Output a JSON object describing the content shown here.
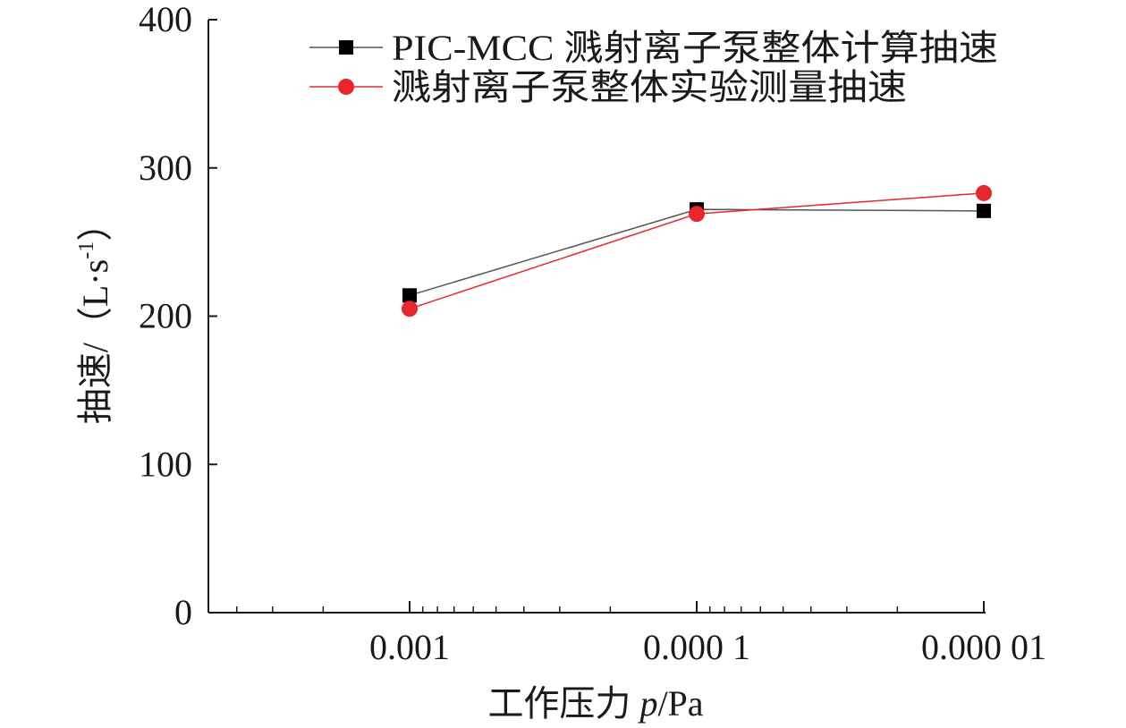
{
  "chart_data": {
    "type": "line",
    "x": [
      "0.001",
      "0.000 1",
      "0.000 01"
    ],
    "x_values": [
      0.001,
      0.0001,
      1e-05
    ],
    "x_scale": "log",
    "x_reversed": true,
    "ylim": [
      0,
      400
    ],
    "yticks": [
      "0",
      "100",
      "200",
      "300",
      "400"
    ],
    "ytick_values": [
      0,
      100,
      200,
      300,
      400
    ],
    "xlabel_prefix": "工作压力 ",
    "xlabel_var": "p",
    "xlabel_unit": "/Pa",
    "ylabel_main": "抽速/（L·s",
    "ylabel_sup": "-1",
    "ylabel_tail": "）",
    "grid": false,
    "legend_position": "top-right",
    "series": [
      {
        "name": "PIC-MCC 溅射离子泵整体计算抽速",
        "marker": "square",
        "color": "#000000",
        "line_color": "#555555",
        "values": [
          214,
          272,
          271
        ]
      },
      {
        "name": "溅射离子泵整体实验测量抽速",
        "marker": "circle",
        "color": "#e8262b",
        "line_color": "#e8262b",
        "values": [
          205,
          269,
          283
        ]
      }
    ]
  }
}
